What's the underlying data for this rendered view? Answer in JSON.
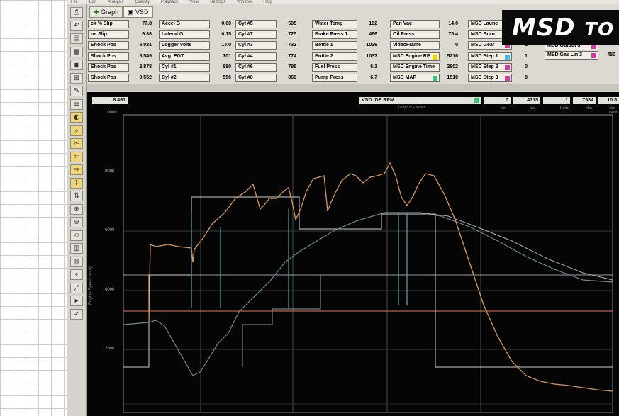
{
  "menu": [
    "File",
    "Edit",
    "Analysis",
    "Overlay",
    "Playback",
    "View",
    "Settings",
    "Window",
    "Help"
  ],
  "tabs": [
    {
      "label": "Graph",
      "icon": "plus-icon"
    },
    {
      "label": "VSD",
      "icon": "floppy-disk-icon"
    }
  ],
  "logo": {
    "text": "MSD",
    "suffix": "TO"
  },
  "columns": [
    {
      "rows": [
        {
          "label": "ck % Slip",
          "value": "77.8"
        },
        {
          "label": "ne Slip",
          "value": "6.88"
        },
        {
          "label": "Shock Pos",
          "value": "5.031"
        },
        {
          "label": "Shock Pos",
          "value": "5.549"
        },
        {
          "label": "Shock Pos",
          "value": "2.878"
        },
        {
          "label": "Shock Pos",
          "value": "0.552"
        }
      ]
    },
    {
      "rows": [
        {
          "label": "Accel G",
          "value": "0.00"
        },
        {
          "label": "Lateral G",
          "value": "0.15"
        },
        {
          "label": "Logger Volts",
          "value": "14.0"
        },
        {
          "label": "Avg. EGT",
          "value": "701"
        },
        {
          "label": "Cyl #1",
          "value": "680"
        },
        {
          "label": "Cyl #2",
          "value": "556"
        }
      ]
    },
    {
      "rows": [
        {
          "label": "Cyl #5",
          "value": "695"
        },
        {
          "label": "Cyl #7",
          "value": "725"
        },
        {
          "label": "Cyl #3",
          "value": "732"
        },
        {
          "label": "Cyl #4",
          "value": "774"
        },
        {
          "label": "Cyl #6",
          "value": "795"
        },
        {
          "label": "Cyl #8",
          "value": "866"
        }
      ]
    },
    {
      "rows": [
        {
          "label": "Water Temp",
          "value": "182"
        },
        {
          "label": "Brake Press 1",
          "value": "496"
        },
        {
          "label": "Bottle 1",
          "value": "1026"
        },
        {
          "label": "Bottle 2",
          "value": "1037"
        },
        {
          "label": "Fuel Press",
          "value": "6.1"
        },
        {
          "label": "Pump Press",
          "value": "6.7"
        }
      ]
    },
    {
      "rows": [
        {
          "label": "Pan Vac",
          "value": "14.0",
          "color": ""
        },
        {
          "label": "Oil Press",
          "value": "75.4",
          "color": ""
        },
        {
          "label": "VideoFrame",
          "value": "0",
          "color": ""
        },
        {
          "label": "MSD Engine RP",
          "value": "5216",
          "color": "#f2d400"
        },
        {
          "label": "MSD Engine Time",
          "value": "2602",
          "color": ""
        },
        {
          "label": "MSD MAP",
          "value": "1510",
          "color": "#3fc07a"
        }
      ]
    },
    {
      "rows": [
        {
          "label": "MSD Launc",
          "value": "",
          "color": ""
        },
        {
          "label": "MSD Burn",
          "value": "",
          "color": ""
        },
        {
          "label": "MSD Gear",
          "value": "1",
          "color": "#d23aa0"
        },
        {
          "label": "MSD Step 1",
          "value": "1",
          "color": "#3fb8e8"
        },
        {
          "label": "MSD Step 2",
          "value": "0",
          "color": "#d23aa0"
        },
        {
          "label": "MSD Step 3",
          "value": "0",
          "color": "#d23aa0"
        }
      ]
    }
  ],
  "extra": [
    {
      "label": "MSD Output 3",
      "value": "",
      "color": "#d23aa0"
    },
    {
      "label": "MSD Gas Lin 3",
      "value": "450",
      "color": "#d23aa0"
    }
  ],
  "header": {
    "time": "8.461",
    "channel": "VSD: DE RPM",
    "readings": [
      {
        "value": "0",
        "label": "Min"
      },
      {
        "value": "4715",
        "label": "Val"
      },
      {
        "value": "1",
        "label": "Delta"
      },
      {
        "value": "7984",
        "label": "Max"
      },
      {
        "value": "10.5",
        "label": "Abs Delta"
      }
    ],
    "title": "Graph is Paused"
  },
  "axis": {
    "ytitle": "Engine Speed (rpm)",
    "yticks": [
      "10000",
      "8000",
      "6000",
      "4000",
      "2000"
    ]
  },
  "colors": {
    "rpm": "#d69a5c",
    "trace2": "#6d8a92",
    "trace3": "#b0b0b0",
    "step": "#cfcfcf",
    "ref": "#c0624a"
  }
}
